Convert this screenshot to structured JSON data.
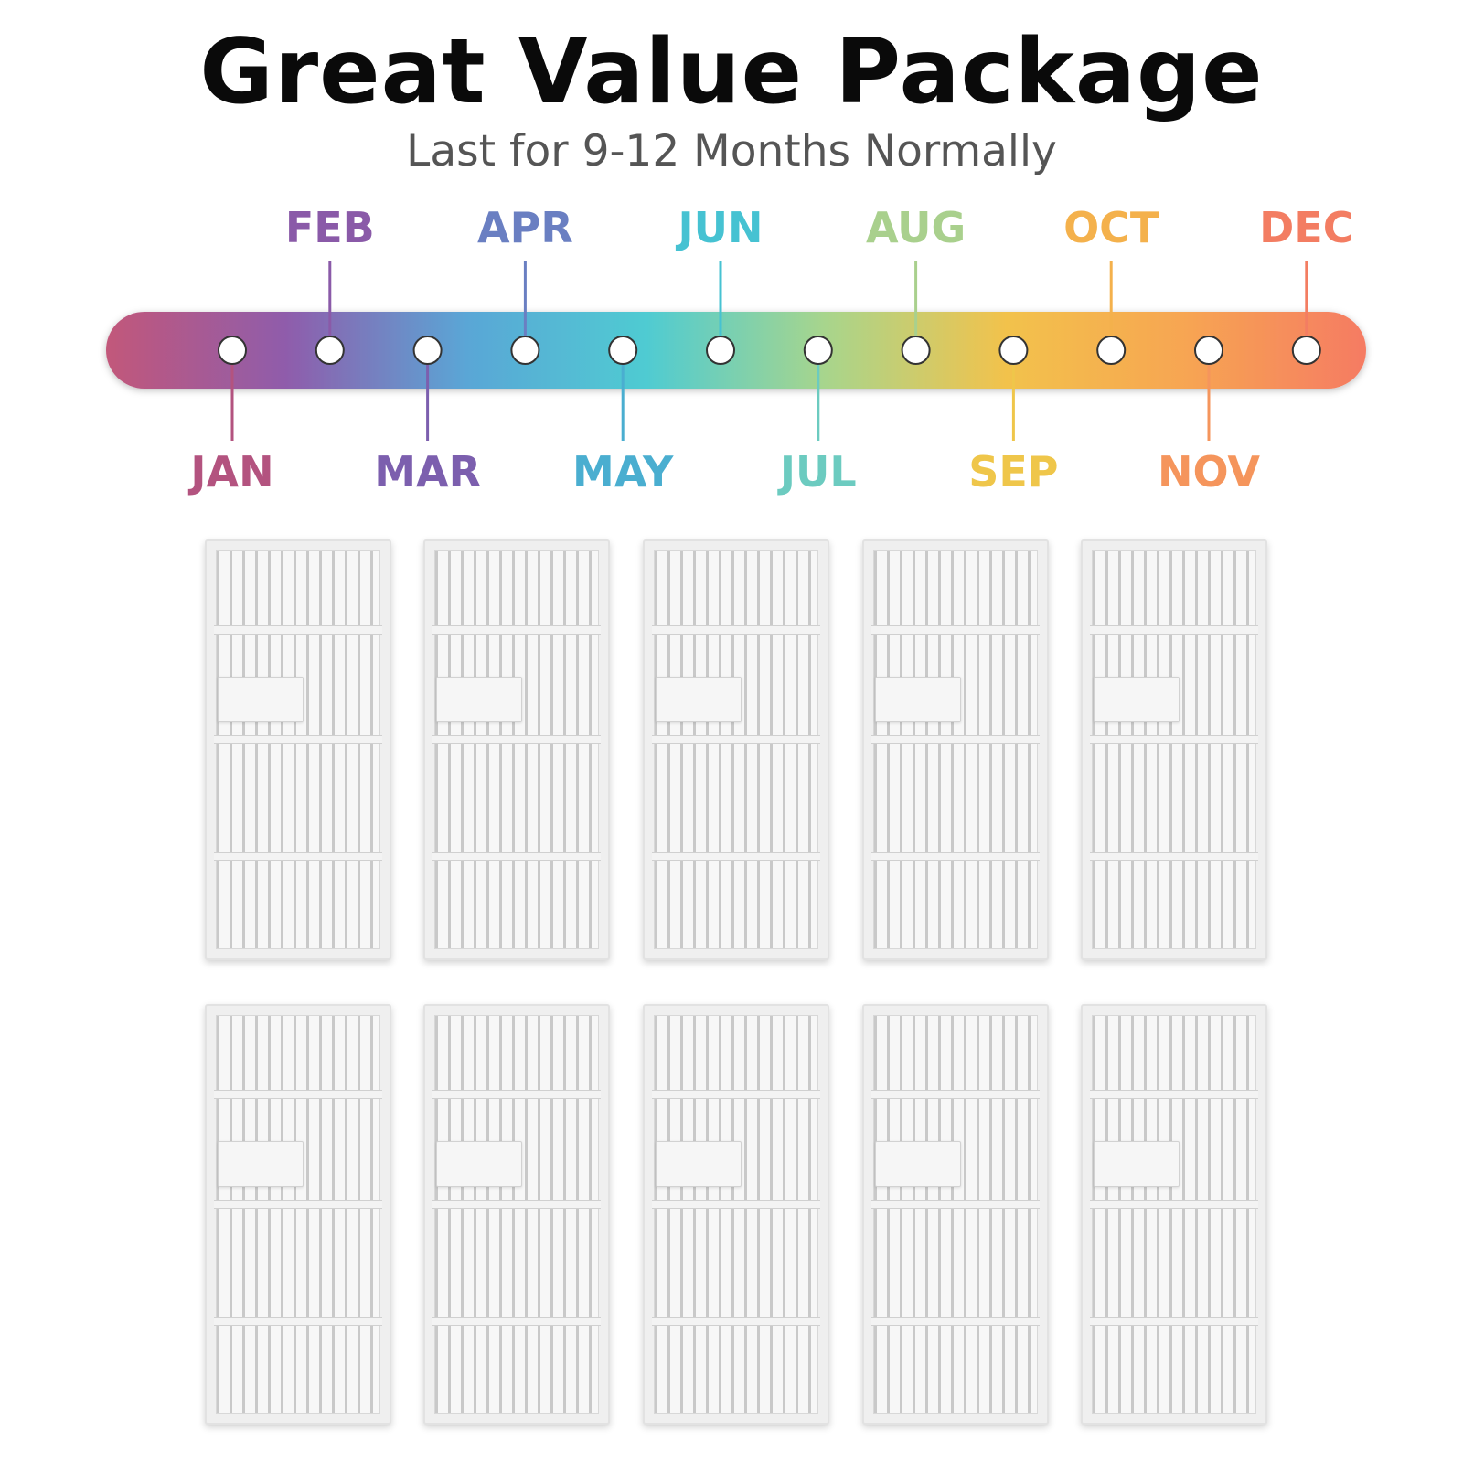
{
  "header": {
    "title": "Great Value Package",
    "subtitle": "Last for 9-12 Months Normally"
  },
  "timeline": {
    "months": [
      {
        "label": "JAN",
        "color": "#b3537f",
        "side": "below"
      },
      {
        "label": "FEB",
        "color": "#8a5aa8",
        "side": "above"
      },
      {
        "label": "MAR",
        "color": "#7c5fae",
        "side": "below"
      },
      {
        "label": "APR",
        "color": "#6a7fc2",
        "side": "above"
      },
      {
        "label": "MAY",
        "color": "#4aaed0",
        "side": "below"
      },
      {
        "label": "JUN",
        "color": "#46c2d2",
        "side": "above"
      },
      {
        "label": "JUL",
        "color": "#6ccbc0",
        "side": "below"
      },
      {
        "label": "AUG",
        "color": "#a9d08d",
        "side": "above"
      },
      {
        "label": "SEP",
        "color": "#efc64a",
        "side": "below"
      },
      {
        "label": "OCT",
        "color": "#f4b14c",
        "side": "above"
      },
      {
        "label": "NOV",
        "color": "#f5955c",
        "side": "below"
      },
      {
        "label": "DEC",
        "color": "#f37d62",
        "side": "above"
      }
    ],
    "gradient": [
      "#c2587a",
      "#8f5cab",
      "#5aa6d6",
      "#4fcbd2",
      "#a8d58c",
      "#f2c24c",
      "#f7a552",
      "#f57b63"
    ]
  },
  "filters": {
    "count": 10,
    "item_name": "hepa-filter"
  }
}
